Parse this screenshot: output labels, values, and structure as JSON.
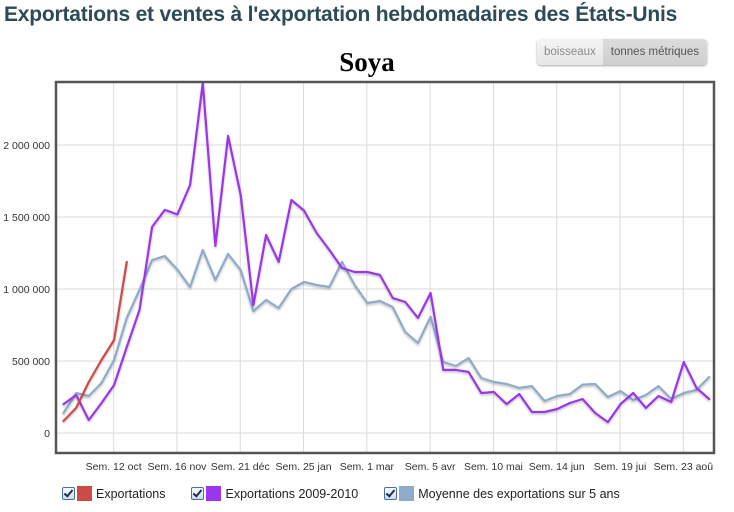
{
  "header": {
    "title": "Exportations et ventes à l'exportation hebdomadaires des États-Unis"
  },
  "unit_toggle": {
    "options": [
      {
        "label": "boisseaux",
        "active": false
      },
      {
        "label": "tonnes métriques",
        "active": true
      }
    ]
  },
  "legend": {
    "items": [
      {
        "label": "Exportations",
        "color": "#cc4b45",
        "checked": true
      },
      {
        "label": "Exportations 2009-2010",
        "color": "#9b36ea",
        "checked": true
      },
      {
        "label": "Moyenne des exportations sur 5 ans",
        "color": "#8eabc9",
        "checked": true
      }
    ]
  },
  "chart_data": {
    "type": "line",
    "title": "Soya",
    "xlabel": "",
    "ylabel": "",
    "ylim": [
      0,
      2450000
    ],
    "y_ticks": [
      0,
      500000,
      1000000,
      1500000,
      2000000
    ],
    "y_tick_labels": [
      "0",
      "500 000",
      "1 000 000",
      "1 500 000",
      "2 000 000"
    ],
    "x_tick_labels": [
      "Sem. 12 oct",
      "Sem. 16 nov",
      "Sem. 21 déc",
      "Sem. 25 jan",
      "Sem. 1 mar",
      "Sem. 5 avr",
      "Sem. 10 mai",
      "Sem. 14 jun",
      "Sem. 19 jui",
      "Sem. 23 aoû"
    ],
    "x_tick_indices": [
      4,
      9,
      14,
      19,
      24,
      29,
      34,
      39,
      44,
      49
    ],
    "num_weeks": 52,
    "grid": true,
    "legend_position": "bottom",
    "series": [
      {
        "name": "Exportations",
        "color": "#cc4b45",
        "values": [
          83000,
          174000,
          354000,
          507000,
          646000,
          1188000
        ]
      },
      {
        "name": "Exportations 2009-2010",
        "color": "#9b36ea",
        "values": [
          201000,
          264000,
          90000,
          208000,
          333000,
          597000,
          854000,
          1431000,
          1549000,
          1518000,
          1722000,
          2431000,
          1299000,
          2063000,
          1653000,
          889000,
          1375000,
          1188000,
          1618000,
          1545000,
          1389000,
          1271000,
          1146000,
          1118000,
          1118000,
          1097000,
          938000,
          910000,
          799000,
          972000,
          438000,
          438000,
          424000,
          278000,
          285000,
          201000,
          271000,
          146000,
          146000,
          167000,
          208000,
          236000,
          139000,
          76000,
          201000,
          278000,
          174000,
          257000,
          215000,
          493000,
          313000,
          236000
        ]
      },
      {
        "name": "Moyenne des exportations sur 5 ans",
        "color": "#8eabc9",
        "values": [
          139000,
          278000,
          257000,
          347000,
          507000,
          799000,
          993000,
          1201000,
          1229000,
          1135000,
          1014000,
          1271000,
          1063000,
          1243000,
          1132000,
          847000,
          924000,
          868000,
          1000000,
          1049000,
          1028000,
          1014000,
          1188000,
          1028000,
          903000,
          917000,
          875000,
          701000,
          625000,
          806000,
          493000,
          465000,
          521000,
          382000,
          354000,
          340000,
          313000,
          326000,
          222000,
          257000,
          271000,
          336000,
          340000,
          250000,
          292000,
          229000,
          264000,
          326000,
          236000,
          278000,
          299000,
          389000
        ]
      }
    ]
  }
}
